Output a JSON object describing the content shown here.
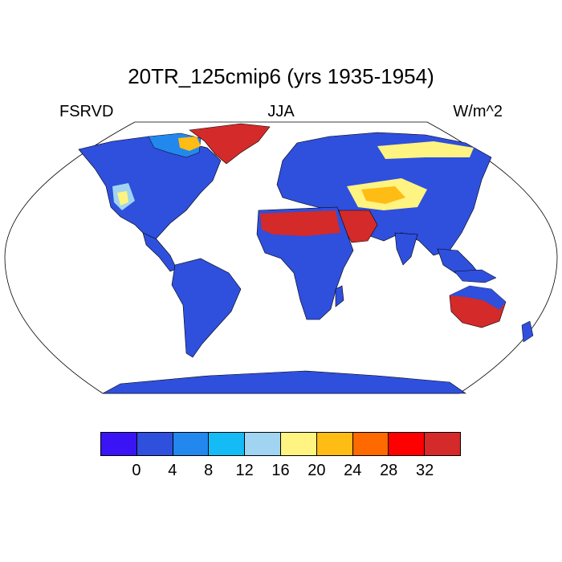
{
  "title": "20TR_125cmip6 (yrs 1935-1954)",
  "left_label": "FSRVD",
  "center_label": "JJA",
  "right_label": "W/m^2",
  "colorbar": {
    "colors": [
      "#3b14f5",
      "#2f4fdd",
      "#2288ee",
      "#14bbf5",
      "#a0d4f0",
      "#fff382",
      "#ffbc14",
      "#ff6a00",
      "#ff0000",
      "#d42a2a"
    ],
    "labels": [
      "0",
      "4",
      "8",
      "12",
      "16",
      "20",
      "24",
      "28",
      "32"
    ]
  },
  "map": {
    "projection": "Robinson",
    "ocean_color": "#ffffff",
    "land_base_color": "#2f4fdd"
  }
}
